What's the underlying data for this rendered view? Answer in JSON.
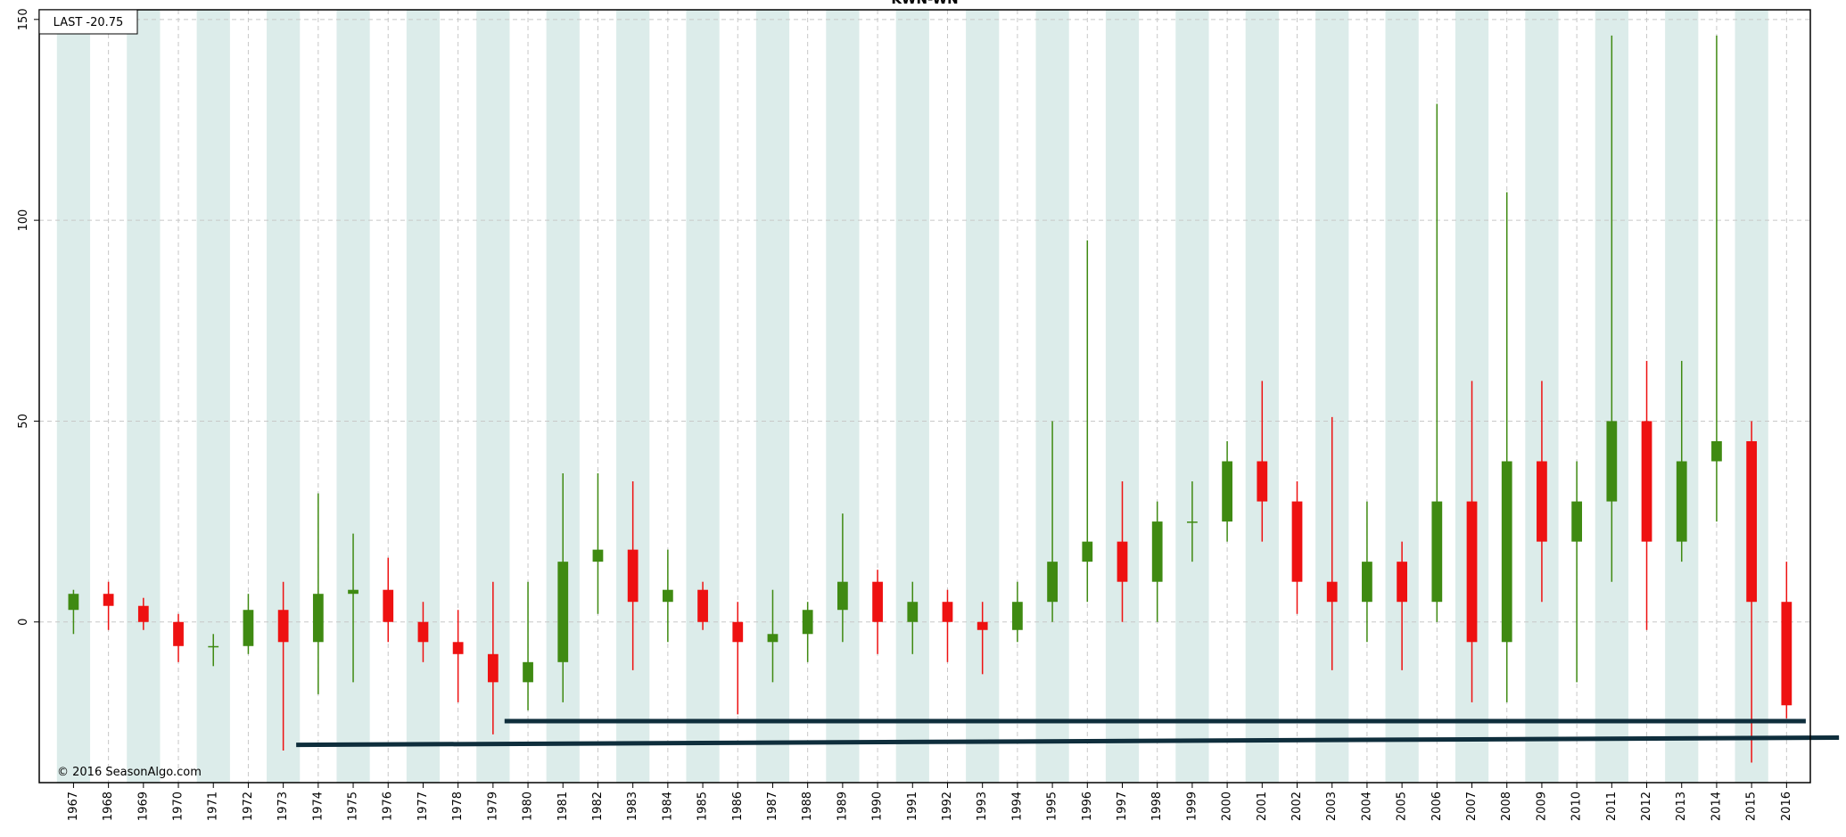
{
  "chart_data": {
    "type": "candlestick",
    "title": "KWN-WN",
    "last_label": "LAST -20.75",
    "copyright": "© 2016 SeasonAlgo.com",
    "up_color": "#3f8a12",
    "down_color": "#ee1111",
    "band_color": "#dcecea",
    "grid": true,
    "x": [
      1967,
      1968,
      1969,
      1970,
      1971,
      1972,
      1973,
      1974,
      1975,
      1976,
      1977,
      1978,
      1979,
      1980,
      1981,
      1982,
      1983,
      1984,
      1985,
      1986,
      1987,
      1988,
      1989,
      1990,
      1991,
      1992,
      1993,
      1994,
      1995,
      1996,
      1997,
      1998,
      1999,
      2000,
      2001,
      2002,
      2003,
      2004,
      2005,
      2006,
      2007,
      2008,
      2009,
      2010,
      2011,
      2012,
      2013,
      2014,
      2015,
      2016
    ],
    "open": [
      3,
      7,
      4,
      0,
      -6,
      -6,
      3,
      -5,
      7,
      8,
      0,
      -5,
      -8,
      -15,
      -10,
      15,
      18,
      5,
      8,
      0,
      -5,
      -3,
      3,
      10,
      0,
      5,
      0,
      -2,
      5,
      15,
      20,
      10,
      25,
      25,
      40,
      30,
      10,
      5,
      15,
      5,
      30,
      -5,
      40,
      20,
      30,
      50,
      20,
      40,
      45,
      5
    ],
    "high": [
      8,
      10,
      6,
      2,
      -3,
      7,
      10,
      32,
      22,
      16,
      5,
      3,
      10,
      10,
      37,
      37,
      35,
      18,
      10,
      5,
      8,
      5,
      27,
      13,
      10,
      8,
      5,
      10,
      50,
      95,
      35,
      30,
      35,
      45,
      60,
      35,
      51,
      30,
      20,
      129,
      60,
      107,
      60,
      40,
      146,
      65,
      65,
      146,
      50,
      15
    ],
    "low": [
      -3,
      -2,
      -2,
      -10,
      -11,
      -8,
      -32,
      -18,
      -15,
      -5,
      -10,
      -20,
      -28,
      -22,
      -20,
      2,
      -12,
      -5,
      -2,
      -23,
      -15,
      -10,
      -5,
      -8,
      -8,
      -10,
      -13,
      -5,
      0,
      5,
      0,
      0,
      15,
      20,
      20,
      2,
      -12,
      -5,
      -12,
      0,
      -20,
      -20,
      5,
      -15,
      10,
      -2,
      15,
      25,
      -35,
      -24
    ],
    "close": [
      7,
      4,
      0,
      -6,
      -6,
      3,
      -5,
      7,
      8,
      0,
      -5,
      -8,
      -15,
      -10,
      15,
      18,
      5,
      8,
      0,
      -5,
      -3,
      3,
      10,
      0,
      5,
      0,
      -2,
      5,
      15,
      20,
      10,
      25,
      25,
      40,
      30,
      10,
      5,
      15,
      5,
      30,
      -5,
      40,
      20,
      30,
      50,
      20,
      40,
      45,
      5,
      -20.75
    ],
    "xlim": [
      1966.02,
      2016.68
    ],
    "xticks": [
      1967,
      1968,
      1969,
      1970,
      1971,
      1972,
      1973,
      1974,
      1975,
      1976,
      1977,
      1978,
      1979,
      1980,
      1981,
      1982,
      1983,
      1984,
      1985,
      1986,
      1987,
      1988,
      1989,
      1990,
      1991,
      1992,
      1993,
      1994,
      1995,
      1996,
      1997,
      1998,
      1999,
      2000,
      2001,
      2002,
      2003,
      2004,
      2005,
      2006,
      2007,
      2008,
      2009,
      2010,
      2011,
      2012,
      2013,
      2014,
      2015,
      2016
    ],
    "ylim": [
      -40,
      152.4
    ],
    "yticks": [
      0,
      50,
      100,
      150
    ],
    "trend_lines": [
      {
        "color": "#0f2e3c",
        "x": [
          1973.37,
          2017.5
        ],
        "y": [
          -30.6,
          -28.8
        ]
      },
      {
        "color": "#0f2e3c",
        "x": [
          1979.33,
          2016.55
        ],
        "y": [
          -24.7,
          -24.7
        ]
      }
    ]
  }
}
